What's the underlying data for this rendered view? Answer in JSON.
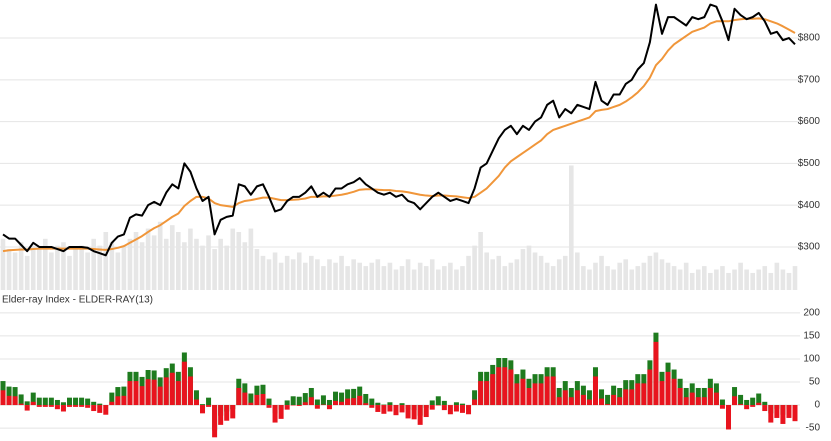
{
  "chart_data": [
    {
      "type": "line",
      "ylim": [
        197,
        891
      ],
      "yticks": [
        {
          "value": 300,
          "label": "$300"
        },
        {
          "value": 400,
          "label": "$400"
        },
        {
          "value": 500,
          "label": "$500"
        },
        {
          "value": 600,
          "label": "$600"
        },
        {
          "value": 700,
          "label": "$700"
        },
        {
          "value": 800,
          "label": "$800"
        }
      ],
      "grid": true,
      "volume": {
        "color": "#e6e6e6",
        "lim": [
          0,
          170
        ],
        "values": [
          30,
          24,
          22,
          28,
          20,
          26,
          24,
          30,
          22,
          26,
          28,
          20,
          24,
          26,
          22,
          30,
          26,
          34,
          28,
          22,
          26,
          30,
          34,
          28,
          36,
          32,
          40,
          30,
          38,
          34,
          28,
          36,
          30,
          26,
          32,
          24,
          30,
          26,
          36,
          34,
          28,
          36,
          24,
          20,
          18,
          22,
          16,
          20,
          18,
          22,
          16,
          20,
          18,
          14,
          18,
          16,
          20,
          14,
          18,
          16,
          14,
          16,
          18,
          14,
          16,
          12,
          14,
          18,
          12,
          16,
          14,
          18,
          12,
          14,
          16,
          12,
          14,
          20,
          26,
          34,
          22,
          18,
          20,
          14,
          16,
          18,
          24,
          26,
          22,
          20,
          16,
          14,
          18,
          20,
          73,
          22,
          14,
          12,
          16,
          20,
          14,
          12,
          16,
          18,
          12,
          14,
          16,
          20,
          22,
          18,
          16,
          14,
          12,
          16,
          10,
          12,
          14,
          10,
          12,
          14,
          10,
          12,
          16,
          12,
          10,
          12,
          14,
          10,
          16,
          12,
          10,
          14
        ]
      },
      "series": [
        {
          "color": "#000000",
          "values": [
            330,
            320,
            320,
            305,
            290,
            310,
            300,
            300,
            300,
            295,
            290,
            300,
            300,
            300,
            298,
            290,
            285,
            280,
            310,
            325,
            330,
            370,
            378,
            375,
            400,
            408,
            400,
            430,
            450,
            440,
            500,
            480,
            440,
            410,
            420,
            330,
            365,
            372,
            375,
            450,
            445,
            425,
            445,
            450,
            420,
            385,
            390,
            410,
            420,
            420,
            430,
            445,
            420,
            430,
            420,
            440,
            440,
            450,
            455,
            465,
            450,
            440,
            430,
            425,
            430,
            420,
            425,
            410,
            405,
            390,
            405,
            420,
            430,
            420,
            410,
            415,
            410,
            405,
            440,
            490,
            500,
            530,
            560,
            580,
            590,
            570,
            590,
            580,
            600,
            610,
            640,
            650,
            610,
            630,
            620,
            640,
            635,
            630,
            695,
            650,
            640,
            665,
            665,
            690,
            700,
            725,
            740,
            790,
            880,
            810,
            850,
            850,
            840,
            830,
            850,
            845,
            850,
            880,
            875,
            840,
            795,
            870,
            855,
            845,
            850,
            860,
            840,
            810,
            815,
            795,
            800,
            785
          ]
        },
        {
          "color": "#f0963a",
          "values": [
            290,
            292,
            293,
            294,
            294,
            295,
            296,
            296,
            296,
            296,
            296,
            296,
            296,
            296,
            296,
            295,
            294,
            293,
            295,
            298,
            302,
            310,
            318,
            326,
            336,
            345,
            352,
            362,
            372,
            380,
            398,
            410,
            420,
            420,
            416,
            405,
            400,
            398,
            396,
            405,
            410,
            412,
            415,
            418,
            418,
            415,
            412,
            412,
            413,
            414,
            416,
            420,
            420,
            421,
            421,
            423,
            425,
            428,
            432,
            437,
            438,
            438,
            437,
            436,
            436,
            434,
            433,
            431,
            428,
            425,
            423,
            422,
            423,
            423,
            422,
            421,
            419,
            417,
            420,
            430,
            440,
            455,
            470,
            490,
            505,
            515,
            525,
            535,
            545,
            555,
            570,
            580,
            585,
            590,
            595,
            600,
            605,
            610,
            625,
            628,
            630,
            635,
            640,
            648,
            658,
            670,
            685,
            705,
            735,
            750,
            770,
            785,
            795,
            805,
            815,
            820,
            825,
            835,
            840,
            840,
            840,
            843,
            845,
            846,
            846,
            847,
            845,
            840,
            835,
            828,
            820,
            812
          ]
        }
      ]
    },
    {
      "type": "bar",
      "title": "Elder-ray Index - ELDER-RAY(13)",
      "ylim": [
        -78,
        217
      ],
      "yticks": [
        -50,
        0,
        50,
        100,
        150,
        200
      ],
      "grid": true,
      "series": [
        {
          "color": "#1e7b1e",
          "values": [
            52,
            40,
            39,
            23,
            8,
            27,
            16,
            16,
            16,
            11,
            6,
            16,
            16,
            16,
            14,
            7,
            3,
            -1,
            27,
            39,
            40,
            72,
            72,
            61,
            76,
            75,
            60,
            80,
            90,
            72,
            114,
            82,
            32,
            2,
            16,
            -55,
            -23,
            -14,
            -9,
            57,
            47,
            25,
            42,
            44,
            14,
            -18,
            -10,
            10,
            19,
            18,
            26,
            37,
            12,
            21,
            11,
            29,
            27,
            34,
            35,
            40,
            24,
            14,
            5,
            1,
            6,
            -2,
            4,
            -9,
            -11,
            -23,
            -6,
            10,
            19,
            9,
            0,
            6,
            3,
            0,
            32,
            72,
            72,
            87,
            102,
            102,
            97,
            67,
            77,
            57,
            67,
            67,
            82,
            82,
            37,
            52,
            37,
            52,
            42,
            32,
            82,
            34,
            22,
            42,
            37,
            54,
            54,
            67,
            67,
            97,
            157,
            72,
            92,
            77,
            57,
            37,
            47,
            37,
            37,
            57,
            47,
            12,
            -33,
            39,
            22,
            11,
            16,
            25,
            7,
            -18,
            -8,
            -21,
            -8,
            -15
          ]
        },
        {
          "color": "#e8141e",
          "values": [
            32,
            20,
            19,
            3,
            -12,
            7,
            -4,
            -4,
            -4,
            -9,
            -14,
            -4,
            -4,
            -4,
            -6,
            -13,
            -17,
            -21,
            7,
            19,
            20,
            52,
            52,
            41,
            56,
            55,
            40,
            60,
            70,
            52,
            94,
            62,
            12,
            -18,
            -4,
            -70,
            -43,
            -34,
            -29,
            37,
            27,
            5,
            22,
            24,
            -6,
            -38,
            -30,
            -10,
            -1,
            -2,
            6,
            17,
            -8,
            1,
            -9,
            9,
            7,
            14,
            15,
            20,
            4,
            -6,
            -15,
            -19,
            -14,
            -22,
            -16,
            -29,
            -31,
            -43,
            -26,
            -10,
            -1,
            -11,
            -20,
            -14,
            -17,
            -20,
            12,
            52,
            52,
            67,
            82,
            82,
            77,
            47,
            57,
            37,
            47,
            47,
            62,
            62,
            17,
            32,
            17,
            32,
            22,
            12,
            62,
            14,
            2,
            22,
            17,
            34,
            34,
            47,
            47,
            77,
            137,
            52,
            72,
            57,
            37,
            17,
            27,
            17,
            17,
            37,
            27,
            -8,
            -53,
            19,
            2,
            -9,
            -4,
            5,
            -13,
            -38,
            -28,
            -41,
            -28,
            -35
          ]
        }
      ]
    }
  ]
}
